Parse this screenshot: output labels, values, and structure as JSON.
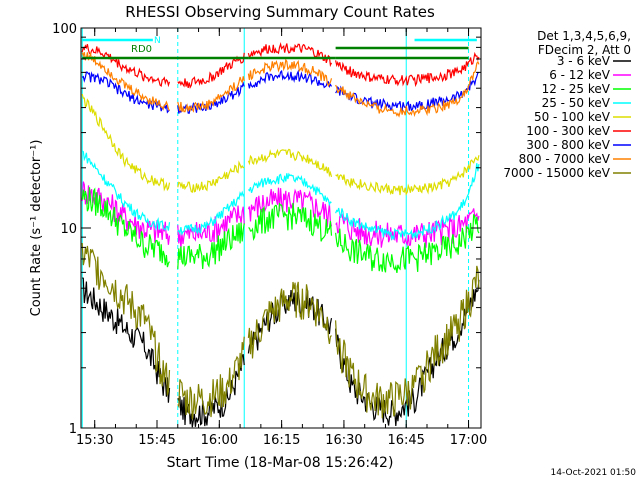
{
  "chart_data": {
    "type": "line",
    "title": "RHESSI Observing Summary Count Rates",
    "xlabel": "Start Time (18-Mar-08 15:26:42)",
    "ylabel": "Count Rate (s⁻¹ detector⁻¹)",
    "y_scale": "log",
    "ylim": [
      1,
      100
    ],
    "xlim": [
      "15:26:42",
      "17:03:00"
    ],
    "x_ticks": [
      "15:30",
      "15:45",
      "16:00",
      "16:15",
      "16:30",
      "16:45",
      "17:00"
    ],
    "y_ticks": [
      "1",
      "10",
      "100"
    ],
    "legend_header": [
      "Det 1,3,4,5,6,9,",
      "FDecim 2, Att 0"
    ],
    "legend_position": "right",
    "series": [
      {
        "name": "3 - 6 keV",
        "color": "#000000",
        "values": [
          5.0,
          4.0,
          3.2,
          2.6,
          1.6,
          1.2,
          1.2,
          1.4,
          2.4,
          3.6,
          4.4,
          4.2,
          3.2,
          1.6,
          1.3,
          1.2,
          1.4,
          2.2,
          3.0,
          4.0,
          5.0
        ]
      },
      {
        "name": "6 - 12 keV",
        "color": "#ff00ff",
        "values": [
          15.5,
          14.0,
          11.5,
          10.0,
          9.4,
          9.3,
          9.5,
          10.8,
          12.5,
          13.6,
          14.0,
          13.3,
          11.5,
          10.0,
          9.4,
          9.3,
          9.3,
          9.6,
          10.0,
          10.8,
          11.5
        ]
      },
      {
        "name": "12 - 25 keV",
        "color": "#00ff00",
        "values": [
          14.5,
          13.0,
          10.0,
          8.3,
          7.6,
          7.2,
          7.3,
          8.6,
          10.0,
          11.3,
          11.6,
          11.0,
          9.3,
          7.8,
          7.1,
          7.0,
          7.1,
          7.6,
          8.2,
          9.5,
          10.5
        ]
      },
      {
        "name": "25 - 50 keV",
        "color": "#00ffff",
        "values": [
          24.0,
          18.0,
          13.5,
          11.0,
          10.2,
          9.8,
          10.2,
          12.5,
          15.5,
          17.5,
          17.8,
          16.5,
          13.0,
          10.8,
          9.8,
          9.3,
          9.4,
          10.2,
          11.8,
          14.5,
          20.0
        ]
      },
      {
        "name": "50 - 100 keV",
        "color": "#dddd00",
        "values": [
          45.0,
          32.0,
          22.0,
          18.0,
          16.5,
          16.0,
          16.2,
          18.5,
          21.5,
          23.0,
          23.5,
          22.0,
          19.0,
          17.0,
          16.0,
          15.5,
          15.5,
          16.0,
          17.5,
          20.0,
          23.0
        ]
      },
      {
        "name": "100 - 300 keV",
        "color": "#ff0000",
        "values": [
          80.0,
          75.0,
          64.0,
          57.0,
          54.0,
          53.0,
          55.0,
          64.0,
          74.0,
          79.0,
          80.0,
          77.0,
          68.0,
          60.0,
          56.0,
          55.0,
          55.0,
          57.0,
          60.0,
          66.0,
          74.0
        ]
      },
      {
        "name": "300 - 800 keV",
        "color": "#0000ff",
        "values": [
          58.0,
          55.0,
          47.0,
          42.0,
          40.0,
          39.5,
          40.0,
          45.0,
          52.0,
          57.0,
          58.5,
          56.0,
          50.0,
          45.0,
          42.0,
          41.0,
          41.0,
          42.5,
          45.0,
          50.0,
          57.0
        ]
      },
      {
        "name": "800 - 7000 keV",
        "color": "#ff8000",
        "values": [
          75.0,
          65.0,
          52.0,
          45.0,
          41.0,
          40.0,
          41.0,
          48.0,
          58.0,
          64.0,
          66.0,
          62.0,
          53.0,
          45.0,
          40.0,
          38.5,
          38.5,
          40.0,
          43.0,
          50.0,
          65.0
        ]
      },
      {
        "name": "7000 - 15000 keV",
        "color": "#808000",
        "values": [
          7.5,
          6.0,
          4.5,
          3.5,
          1.8,
          1.4,
          1.4,
          1.6,
          2.6,
          3.7,
          4.5,
          4.3,
          3.2,
          1.8,
          1.4,
          1.4,
          1.6,
          2.4,
          3.2,
          4.3,
          5.5
        ]
      }
    ],
    "x_samples": [
      "15:27",
      "15:32",
      "15:37",
      "15:42",
      "15:47",
      "15:52",
      "15:57",
      "16:02",
      "16:07",
      "16:12",
      "16:17",
      "16:22",
      "16:27",
      "16:32",
      "16:37",
      "16:42",
      "16:47",
      "16:52",
      "16:57",
      "17:00",
      "17:02"
    ],
    "annotations": [
      {
        "label": "RD0",
        "color": "#008000"
      },
      {
        "label": "N",
        "color": "#00ffff"
      }
    ],
    "footer": "14-Oct-2021 01:50"
  }
}
